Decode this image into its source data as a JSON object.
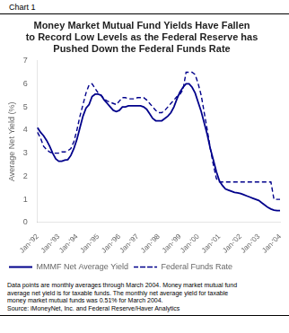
{
  "chart_data": {
    "type": "line",
    "chart_label": "Chart 1",
    "title": "Money Market Mutual Fund Yields Have Fallen\nto Record Low Levels as the Federal Reserve has\nPushed Down the Federal Funds Rate",
    "ylabel": "Average Net Yield (%)",
    "footnote": "Data points are monthly averages through March 2004.  Money market mutual fund\naverage net yield is for taxable funds.  The monthly net average yield for taxable\nmoney market mutual funds was 0.51% for March 2004.\nSource: iMoneyNet, Inc. and Federal Reserve/Haver Analytics",
    "categories": [
      "Jan-'92",
      null,
      null,
      null,
      null,
      null,
      null,
      "Jan-'93",
      null,
      null,
      null,
      null,
      null,
      "Jan-'94",
      null,
      null,
      null,
      null,
      null,
      null,
      "Jan-'95",
      null,
      null,
      null,
      null,
      null,
      null,
      "Jan-'96",
      null,
      null,
      null,
      null,
      null,
      "Jan-'97",
      null,
      null,
      null,
      null,
      null,
      null,
      "Jan-'98",
      null,
      null,
      null,
      null,
      null,
      null,
      "Jan-'99",
      null,
      null,
      null,
      null,
      null,
      "Jan-'00",
      null,
      null,
      null,
      null,
      null,
      null,
      "Jan-'01",
      null,
      null,
      null,
      null,
      null,
      null,
      "Jan-'02",
      null,
      null,
      null,
      null,
      null,
      "Jan-'03",
      null,
      null,
      null,
      null,
      null,
      null,
      "Jan-'04"
    ],
    "series": [
      {
        "name": "MMMF Net Average Yield",
        "color": "#00008B",
        "line_style": "solid",
        "values": [
          4.1,
          3.9,
          3.75,
          3.55,
          3.3,
          3.0,
          2.75,
          2.65,
          2.65,
          2.7,
          2.72,
          2.9,
          3.2,
          3.6,
          4.1,
          4.6,
          4.95,
          5.1,
          5.45,
          5.55,
          5.55,
          5.5,
          5.3,
          5.15,
          5.0,
          4.85,
          4.8,
          4.85,
          5.0,
          5.0,
          5.05,
          5.05,
          5.05,
          5.05,
          5.05,
          5.0,
          4.9,
          4.7,
          4.5,
          4.4,
          4.4,
          4.4,
          4.5,
          4.6,
          4.75,
          5.0,
          5.35,
          5.65,
          5.85,
          6.0,
          6.0,
          5.85,
          5.6,
          5.2,
          4.8,
          4.3,
          3.8,
          3.2,
          2.7,
          2.2,
          1.8,
          1.6,
          1.45,
          1.4,
          1.35,
          1.3,
          1.28,
          1.25,
          1.2,
          1.15,
          1.1,
          1.05,
          1.0,
          0.95,
          0.85,
          0.75,
          0.65,
          0.58,
          0.53,
          0.51,
          0.51
        ]
      },
      {
        "name": "Federal Funds Rate",
        "color": "#00008B",
        "line_style": "dashed",
        "values": [
          3.9,
          3.65,
          3.3,
          3.15,
          3.05,
          3.0,
          3.0,
          3.0,
          3.05,
          3.05,
          3.1,
          3.2,
          3.5,
          4.0,
          4.6,
          5.1,
          5.6,
          5.95,
          6.0,
          5.8,
          5.6,
          5.5,
          5.35,
          5.25,
          5.2,
          5.15,
          5.1,
          5.25,
          5.4,
          5.4,
          5.35,
          5.35,
          5.35,
          5.4,
          5.4,
          5.4,
          5.3,
          5.15,
          5.0,
          4.85,
          4.75,
          4.75,
          4.85,
          5.0,
          5.15,
          5.3,
          5.45,
          5.55,
          5.75,
          6.5,
          6.5,
          6.5,
          6.4,
          6.0,
          5.5,
          4.75,
          4.0,
          3.2,
          2.5,
          1.9,
          1.75,
          1.75,
          1.75,
          1.75,
          1.75,
          1.75,
          1.75,
          1.75,
          1.75,
          1.75,
          1.75,
          1.75,
          1.75,
          1.75,
          1.75,
          1.75,
          1.75,
          1.75,
          1.0,
          1.0,
          1.0
        ]
      }
    ],
    "ylim": [
      0,
      7
    ],
    "yticks": [
      0,
      1,
      2,
      3,
      4,
      5,
      6,
      7
    ],
    "grid": false,
    "legend": "lower left"
  }
}
